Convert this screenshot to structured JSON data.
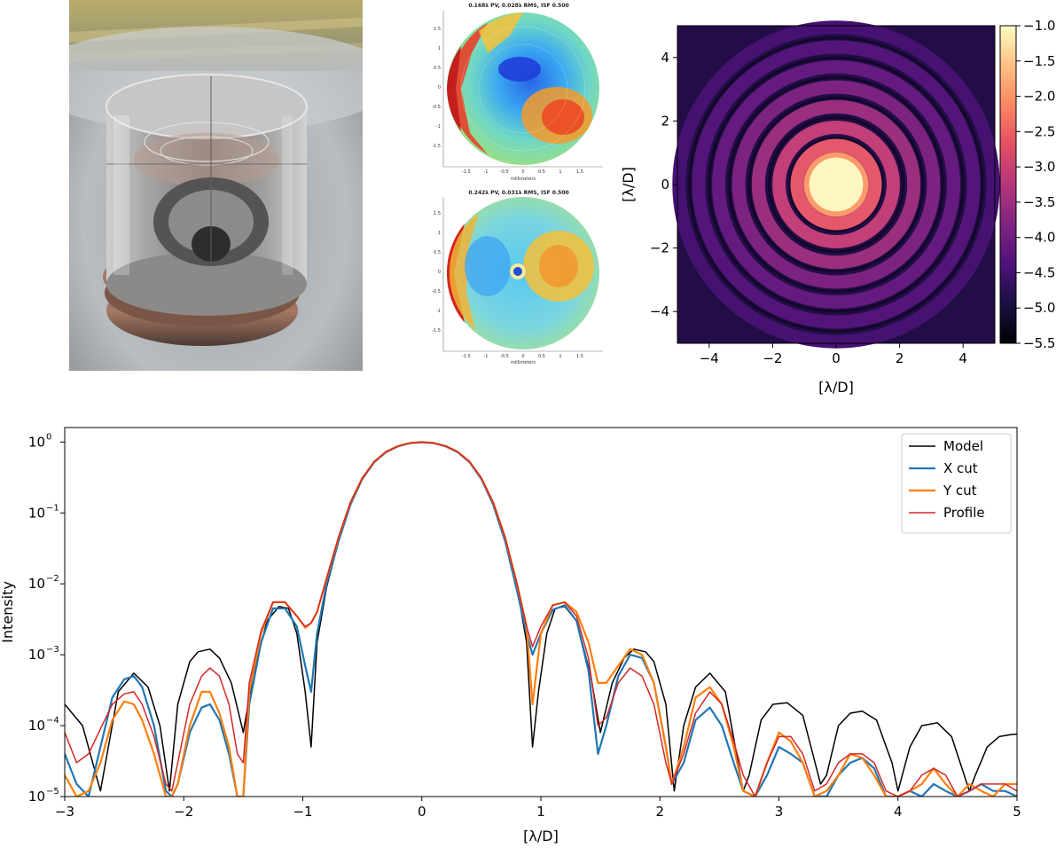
{
  "photo": {
    "alt": "Photograph of cylindrical glass optic mounted on a metal plate"
  },
  "wavefront_maps": [
    {
      "title": "0.168λ PV, 0.028λ RMS, ISF 0.500",
      "xlabel": "millimeters",
      "xticks": [
        "-1.5",
        "-1",
        "-0.5",
        "0",
        "0.5",
        "1",
        "1.5"
      ],
      "yticks": [
        "1.5",
        "1",
        "0.5",
        "0",
        "-0.5",
        "-1",
        "-1.5"
      ]
    },
    {
      "title": "0.242λ PV, 0.031λ RMS, ISF 0.500",
      "xlabel": "millimeters",
      "xticks": [
        "-1.5",
        "-1",
        "-0.5",
        "0",
        "0.5",
        "1",
        "1.5"
      ],
      "yticks": [
        "1.5",
        "1",
        "0.5",
        "0",
        "-0.5",
        "-1",
        "-1.5"
      ]
    }
  ],
  "chart_data": [
    {
      "type": "heatmap",
      "title": "",
      "xlabel": "[λ/D]",
      "ylabel": "[λ/D]",
      "xlim": [
        -5,
        5
      ],
      "ylim": [
        -5,
        5
      ],
      "xticks": [
        -4,
        -2,
        0,
        2,
        4
      ],
      "yticks": [
        4,
        2,
        0,
        -2,
        -4
      ],
      "colorbar": {
        "ticks": [
          -1.0,
          -1.5,
          -2.0,
          -2.5,
          -3.0,
          -3.5,
          -4.0,
          -4.5,
          -5.0,
          -5.5
        ],
        "range": [
          -5.5,
          -1.0
        ],
        "colormap": "magma"
      },
      "ring_radii": [
        1.23,
        1.8,
        2.45,
        3.07,
        3.7,
        4.33,
        4.95
      ],
      "core_radius": 0.85
    },
    {
      "type": "line",
      "xlabel": "[λ/D]",
      "ylabel": "Intensity",
      "xlim": [
        -3,
        5
      ],
      "ylim": [
        1e-05,
        1.6
      ],
      "yscale": "log",
      "xticks": [
        -3,
        -2,
        -1,
        0,
        1,
        2,
        3,
        4,
        5
      ],
      "yticks": [
        {
          "exp": "-5",
          "value": 1e-05
        },
        {
          "exp": "-4",
          "value": 0.0001
        },
        {
          "exp": "-3",
          "value": 0.001
        },
        {
          "exp": "-2",
          "value": 0.01
        },
        {
          "exp": "-1",
          "value": 0.1
        },
        {
          "exp": "0",
          "value": 1
        }
      ],
      "legend_position": "top-right",
      "series": [
        {
          "name": "Model",
          "color": "#000000",
          "width": 1.5,
          "x": [
            -3.0,
            -2.85,
            -2.7,
            -2.55,
            -2.42,
            -2.3,
            -2.2,
            -2.12,
            -2.05,
            -1.95,
            -1.88,
            -1.78,
            -1.7,
            -1.6,
            -1.5,
            -1.42,
            -1.3,
            -1.2,
            -1.12,
            -1.05,
            -0.98,
            -0.93,
            -0.88,
            -0.8,
            -0.7,
            -0.6,
            -0.5,
            -0.4,
            -0.3,
            -0.2,
            -0.1,
            0.0,
            0.1,
            0.2,
            0.3,
            0.4,
            0.5,
            0.6,
            0.7,
            0.8,
            0.88,
            0.93,
            0.98,
            1.05,
            1.12,
            1.2,
            1.3,
            1.42,
            1.5,
            1.6,
            1.7,
            1.78,
            1.88,
            1.95,
            2.05,
            2.12,
            2.2,
            2.3,
            2.42,
            2.55,
            2.7,
            2.75,
            2.85,
            2.95,
            3.07,
            3.2,
            3.35,
            3.4,
            3.5,
            3.6,
            3.7,
            3.82,
            3.95,
            4.0,
            4.1,
            4.2,
            4.33,
            4.45,
            4.6,
            4.65,
            4.75,
            4.85,
            4.95,
            5.0
          ],
          "y": [
            0.0002,
            0.0001,
            1.2e-05,
            0.0003,
            0.00055,
            0.00035,
            0.0001,
            1.2e-05,
            0.0002,
            0.0008,
            0.0011,
            0.0012,
            0.0009,
            0.0004,
            8e-05,
            0.0005,
            0.003,
            0.0048,
            0.0045,
            0.002,
            0.0003,
            5e-05,
            0.0015,
            0.009,
            0.04,
            0.13,
            0.3,
            0.52,
            0.72,
            0.87,
            0.97,
            1.0,
            0.97,
            0.87,
            0.72,
            0.52,
            0.3,
            0.13,
            0.04,
            0.009,
            0.0015,
            5e-05,
            0.0003,
            0.002,
            0.0045,
            0.0048,
            0.003,
            0.0005,
            8e-05,
            0.0004,
            0.0009,
            0.0012,
            0.0011,
            0.0008,
            0.0002,
            1.2e-05,
            0.0001,
            0.00035,
            0.00055,
            0.0003,
            1.2e-05,
            2e-05,
            0.00012,
            0.0002,
            0.00021,
            0.00014,
            1.5e-05,
            2e-05,
            0.0001,
            0.00015,
            0.00016,
            0.00012,
            3e-05,
            1.2e-05,
            5e-05,
            0.0001,
            0.00011,
            7e-05,
            1.2e-05,
            2e-05,
            5e-05,
            7e-05,
            7.5e-05,
            7.6e-05
          ]
        },
        {
          "name": "X cut",
          "color": "#1f77b4",
          "width": 2.2,
          "x": [
            -3.0,
            -2.9,
            -2.8,
            -2.7,
            -2.6,
            -2.5,
            -2.42,
            -2.35,
            -2.25,
            -2.15,
            -2.1,
            -2.05,
            -1.95,
            -1.85,
            -1.78,
            -1.7,
            -1.62,
            -1.55,
            -1.5,
            -1.45,
            -1.35,
            -1.25,
            -1.15,
            -1.05,
            -0.98,
            -0.93,
            -0.88,
            -0.8,
            -0.7,
            -0.6,
            -0.5,
            -0.4,
            -0.3,
            -0.2,
            -0.1,
            0.0,
            0.1,
            0.2,
            0.3,
            0.4,
            0.5,
            0.6,
            0.7,
            0.8,
            0.88,
            0.93,
            1.0,
            1.1,
            1.2,
            1.3,
            1.4,
            1.48,
            1.55,
            1.65,
            1.75,
            1.85,
            1.95,
            2.05,
            2.1,
            2.2,
            2.3,
            2.42,
            2.52,
            2.62,
            2.7,
            2.8,
            2.9,
            3.0,
            3.1,
            3.2,
            3.3,
            3.4,
            3.5,
            3.6,
            3.7,
            3.8,
            3.9,
            4.0,
            4.1,
            4.2,
            4.3,
            4.4,
            4.5,
            4.6,
            4.7,
            4.8,
            4.9,
            5.0
          ],
          "y": [
            4e-05,
            1.5e-05,
            1e-05,
            5e-05,
            0.00025,
            0.00045,
            0.0005,
            0.00035,
            0.0001,
            1.2e-05,
            1e-05,
            1.5e-05,
            8e-05,
            0.00018,
            0.0002,
            0.00012,
            4e-05,
            1e-05,
            1e-05,
            0.0002,
            0.0015,
            0.0045,
            0.0045,
            0.0025,
            0.0007,
            0.0003,
            0.002,
            0.01,
            0.04,
            0.13,
            0.3,
            0.52,
            0.72,
            0.87,
            0.96,
            0.99,
            0.96,
            0.87,
            0.72,
            0.52,
            0.3,
            0.13,
            0.04,
            0.008,
            0.002,
            0.001,
            0.002,
            0.0043,
            0.005,
            0.003,
            0.0006,
            4e-05,
            0.0001,
            0.0005,
            0.001,
            0.0009,
            0.0004,
            5e-05,
            1.5e-05,
            3e-05,
            0.00012,
            0.00018,
            0.0001,
            3e-05,
            1.2e-05,
            1e-05,
            2e-05,
            5e-05,
            4e-05,
            3e-05,
            1e-05,
            1e-05,
            2e-05,
            3e-05,
            3.5e-05,
            2.5e-05,
            1e-05,
            1e-05,
            1.2e-05,
            1e-05,
            1.5e-05,
            1.2e-05,
            1e-05,
            1.2e-05,
            1.5e-05,
            1.2e-05,
            1.2e-05,
            1e-05
          ]
        },
        {
          "name": "Y cut",
          "color": "#ff7f0e",
          "width": 2.2,
          "x": [
            -3.0,
            -2.9,
            -2.8,
            -2.7,
            -2.6,
            -2.5,
            -2.42,
            -2.35,
            -2.25,
            -2.15,
            -2.1,
            -2.05,
            -1.95,
            -1.85,
            -1.78,
            -1.7,
            -1.62,
            -1.55,
            -1.5,
            -1.45,
            -1.35,
            -1.25,
            -1.15,
            -1.05,
            -0.98,
            -0.93,
            -0.88,
            -0.8,
            -0.7,
            -0.6,
            -0.5,
            -0.4,
            -0.3,
            -0.2,
            -0.1,
            0.0,
            0.1,
            0.2,
            0.3,
            0.4,
            0.5,
            0.6,
            0.7,
            0.8,
            0.88,
            0.93,
            1.0,
            1.1,
            1.2,
            1.3,
            1.4,
            1.48,
            1.55,
            1.65,
            1.75,
            1.85,
            1.95,
            2.05,
            2.1,
            2.2,
            2.3,
            2.42,
            2.52,
            2.62,
            2.7,
            2.8,
            2.9,
            3.0,
            3.1,
            3.2,
            3.3,
            3.4,
            3.5,
            3.6,
            3.7,
            3.8,
            3.9,
            4.0,
            4.1,
            4.2,
            4.3,
            4.4,
            4.5,
            4.6,
            4.7,
            4.8,
            4.9,
            5.0
          ],
          "y": [
            2e-05,
            1e-05,
            1.2e-05,
            3e-05,
            0.00012,
            0.00022,
            0.0002,
            0.00012,
            4e-05,
            1e-05,
            1e-05,
            1.5e-05,
            0.0001,
            0.0003,
            0.0003,
            0.00015,
            5e-05,
            1e-05,
            1e-05,
            0.0003,
            0.002,
            0.0055,
            0.0055,
            0.0035,
            0.0024,
            0.0028,
            0.004,
            0.012,
            0.045,
            0.14,
            0.31,
            0.53,
            0.73,
            0.88,
            0.97,
            1.0,
            0.97,
            0.88,
            0.73,
            0.53,
            0.31,
            0.14,
            0.045,
            0.01,
            0.0025,
            0.0002,
            0.002,
            0.005,
            0.0055,
            0.004,
            0.0015,
            0.0004,
            0.0004,
            0.0007,
            0.0012,
            0.001,
            0.0004,
            5e-05,
            1.5e-05,
            5e-05,
            0.00025,
            0.00035,
            0.0002,
            5e-05,
            1.2e-05,
            1e-05,
            3e-05,
            8e-05,
            6e-05,
            3e-05,
            1e-05,
            1.2e-05,
            2e-05,
            4e-05,
            3.5e-05,
            2e-05,
            1e-05,
            1e-05,
            1.2e-05,
            1.5e-05,
            2.5e-05,
            1.5e-05,
            1e-05,
            1.5e-05,
            1.2e-05,
            1e-05,
            1.5e-05,
            1.5e-05
          ]
        },
        {
          "name": "Profile",
          "color": "#d62728",
          "width": 1.5,
          "x": [
            -3.0,
            -2.9,
            -2.8,
            -2.7,
            -2.6,
            -2.5,
            -2.42,
            -2.35,
            -2.25,
            -2.15,
            -2.1,
            -2.05,
            -1.95,
            -1.85,
            -1.78,
            -1.7,
            -1.62,
            -1.55,
            -1.5,
            -1.45,
            -1.35,
            -1.25,
            -1.15,
            -1.05,
            -0.98,
            -0.93,
            -0.88,
            -0.8,
            -0.7,
            -0.6,
            -0.5,
            -0.4,
            -0.3,
            -0.2,
            -0.1,
            0.0,
            0.1,
            0.2,
            0.3,
            0.4,
            0.5,
            0.6,
            0.7,
            0.8,
            0.88,
            0.93,
            1.0,
            1.1,
            1.2,
            1.3,
            1.4,
            1.48,
            1.55,
            1.65,
            1.75,
            1.85,
            1.95,
            2.05,
            2.1,
            2.2,
            2.3,
            2.42,
            2.52,
            2.62,
            2.7,
            2.8,
            2.9,
            3.0,
            3.1,
            3.2,
            3.3,
            3.4,
            3.5,
            3.6,
            3.7,
            3.8,
            3.9,
            4.0,
            4.1,
            4.2,
            4.3,
            4.4,
            4.5,
            4.6,
            4.7,
            4.8,
            4.9,
            5.0
          ],
          "y": [
            8e-05,
            3e-05,
            4e-05,
            9e-05,
            0.0002,
            0.00028,
            0.0003,
            0.0002,
            7e-05,
            1.5e-05,
            1.2e-05,
            3e-05,
            0.0002,
            0.0005,
            0.00065,
            0.0005,
            0.0002,
            4e-05,
            3e-05,
            0.0004,
            0.0022,
            0.0055,
            0.0055,
            0.0035,
            0.0025,
            0.0028,
            0.004,
            0.012,
            0.045,
            0.14,
            0.31,
            0.53,
            0.73,
            0.88,
            0.97,
            1.0,
            0.97,
            0.88,
            0.73,
            0.53,
            0.31,
            0.14,
            0.045,
            0.01,
            0.0025,
            0.0013,
            0.0025,
            0.005,
            0.0055,
            0.0035,
            0.0009,
            0.0001,
            0.00013,
            0.0004,
            0.00065,
            0.0005,
            0.0002,
            3e-05,
            1.5e-05,
            4e-05,
            0.00015,
            0.0003,
            0.0002,
            6e-05,
            2e-05,
            1e-05,
            3e-05,
            7e-05,
            7e-05,
            4e-05,
            1.2e-05,
            1.5e-05,
            3e-05,
            4e-05,
            4e-05,
            3e-05,
            1.2e-05,
            1e-05,
            1.2e-05,
            2e-05,
            2.5e-05,
            2e-05,
            1e-05,
            1.2e-05,
            1.5e-05,
            1.5e-05,
            1.5e-05,
            1.2e-05
          ]
        }
      ]
    }
  ]
}
